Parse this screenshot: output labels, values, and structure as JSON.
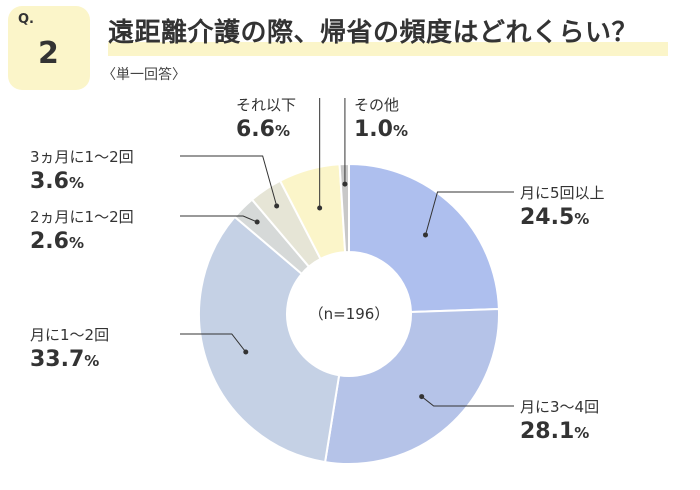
{
  "question": {
    "mark": "Q.",
    "number": "2",
    "title": "遠距離介護の際、帰省の頻度はどれくらい？",
    "subtitle": "〈単一回答〉"
  },
  "chart_data": {
    "type": "pie",
    "variant": "donut",
    "center_label": "（n=196）",
    "unit": "%",
    "slices": [
      {
        "label": "月に5回以上",
        "value": 24.5,
        "color": "#aebfee"
      },
      {
        "label": "月に3〜4回",
        "value": 28.1,
        "color": "#b5c3e8"
      },
      {
        "label": "月に1〜2回",
        "value": 33.7,
        "color": "#c5d1e5"
      },
      {
        "label": "2ヵ月に1〜2回",
        "value": 2.6,
        "color": "#d6d9d8"
      },
      {
        "label": "3ヵ月に1〜2回",
        "value": 3.6,
        "color": "#e6e5d6"
      },
      {
        "label": "それ以下",
        "value": 6.6,
        "color": "#fbf5c9"
      },
      {
        "label": "その他",
        "value": 1.0,
        "color": "#c8c8c8"
      }
    ]
  }
}
